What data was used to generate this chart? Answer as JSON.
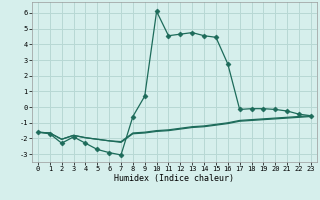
{
  "xlabel": "Humidex (Indice chaleur)",
  "ylabel": "",
  "xlim": [
    -0.5,
    23.5
  ],
  "ylim": [
    -3.5,
    6.7
  ],
  "xticks": [
    0,
    1,
    2,
    3,
    4,
    5,
    6,
    7,
    8,
    9,
    10,
    11,
    12,
    13,
    14,
    15,
    16,
    17,
    18,
    19,
    20,
    21,
    22,
    23
  ],
  "yticks": [
    -3,
    -2,
    -1,
    0,
    1,
    2,
    3,
    4,
    5,
    6
  ],
  "bg_color": "#d6efec",
  "grid_color": "#b8d8d4",
  "line_color": "#1d6b5a",
  "line1_x": [
    0,
    1,
    2,
    3,
    4,
    5,
    6,
    7,
    8,
    9,
    10,
    11,
    12,
    13,
    14,
    15,
    16,
    17,
    18,
    19,
    20,
    21,
    22,
    23
  ],
  "line1_y": [
    -1.6,
    -1.7,
    -2.3,
    -1.9,
    -2.3,
    -2.7,
    -2.9,
    -3.05,
    -0.6,
    0.7,
    6.1,
    4.55,
    4.65,
    4.75,
    4.55,
    4.45,
    2.75,
    -0.15,
    -0.1,
    -0.1,
    -0.15,
    -0.25,
    -0.45,
    -0.55
  ],
  "line2_x": [
    0,
    1,
    2,
    3,
    4,
    5,
    6,
    7,
    8,
    9,
    10,
    11,
    12,
    13,
    14,
    15,
    16,
    17,
    18,
    19,
    20,
    21,
    22,
    23
  ],
  "line2_y": [
    -1.6,
    -1.65,
    -2.05,
    -1.8,
    -1.95,
    -2.05,
    -2.15,
    -2.2,
    -1.65,
    -1.6,
    -1.5,
    -1.45,
    -1.35,
    -1.25,
    -1.2,
    -1.1,
    -1.0,
    -0.85,
    -0.8,
    -0.75,
    -0.7,
    -0.65,
    -0.6,
    -0.55
  ],
  "line3_x": [
    0,
    1,
    2,
    3,
    4,
    5,
    6,
    7,
    8,
    9,
    10,
    11,
    12,
    13,
    14,
    15,
    16,
    17,
    18,
    19,
    20,
    21,
    22,
    23
  ],
  "line3_y": [
    -1.6,
    -1.65,
    -2.05,
    -1.8,
    -1.95,
    -2.05,
    -2.15,
    -2.25,
    -1.7,
    -1.65,
    -1.55,
    -1.5,
    -1.4,
    -1.3,
    -1.25,
    -1.15,
    -1.05,
    -0.9,
    -0.85,
    -0.8,
    -0.75,
    -0.7,
    -0.65,
    -0.6
  ]
}
